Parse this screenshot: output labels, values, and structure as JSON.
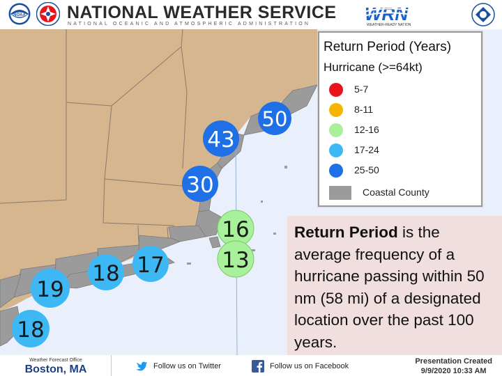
{
  "header": {
    "title": "NATIONAL WEATHER SERVICE",
    "subtitle": "NATIONAL OCEANIC AND ATMOSPHERIC ADMINISTRATION",
    "noaa_logo_text": "NOAA",
    "wrn_logo_text": "WRN",
    "wrn_tagline": "WEATHER-READY NATION"
  },
  "legend": {
    "title": "Return Period (Years)",
    "subtitle": "Hurricane (>=64kt)",
    "items": [
      {
        "label": "5-7",
        "color": "#e8141b"
      },
      {
        "label": "8-11",
        "color": "#f4b400"
      },
      {
        "label": "12-16",
        "color": "#a8f09a"
      },
      {
        "label": "17-24",
        "color": "#3db8f5"
      },
      {
        "label": "25-50",
        "color": "#1f6fe6"
      }
    ],
    "coastal_label": "Coastal County",
    "coastal_color": "#9b9b9b"
  },
  "map": {
    "markers": [
      {
        "label": "50",
        "color": "#1f6fe6"
      },
      {
        "label": "43",
        "color": "#1f6fe6"
      },
      {
        "label": "30",
        "color": "#1f6fe6"
      },
      {
        "label": "16",
        "color": "#a8f09a"
      },
      {
        "label": "13",
        "color": "#a8f09a"
      },
      {
        "label": "17",
        "color": "#3db8f5"
      },
      {
        "label": "18",
        "color": "#3db8f5"
      },
      {
        "label": "19",
        "color": "#3db8f5"
      },
      {
        "label": "18",
        "color": "#3db8f5"
      }
    ],
    "colors": {
      "land": "#d6b68f",
      "water": "#e9f0fb",
      "coastal": "#9b9b9b"
    }
  },
  "info": {
    "term": "Return Period",
    "definition": " is the average frequency of a hurricane passing within 50 nm (58 mi) of a designated location over the past 100 years."
  },
  "footer": {
    "office_label": "Weather Forecast Office",
    "office_name": "Boston, MA",
    "twitter_label": "Follow us on Twitter",
    "facebook_label": "Follow us on Facebook",
    "presentation_label": "Presentation Created",
    "presentation_date": "9/9/2020 10:33 AM"
  }
}
